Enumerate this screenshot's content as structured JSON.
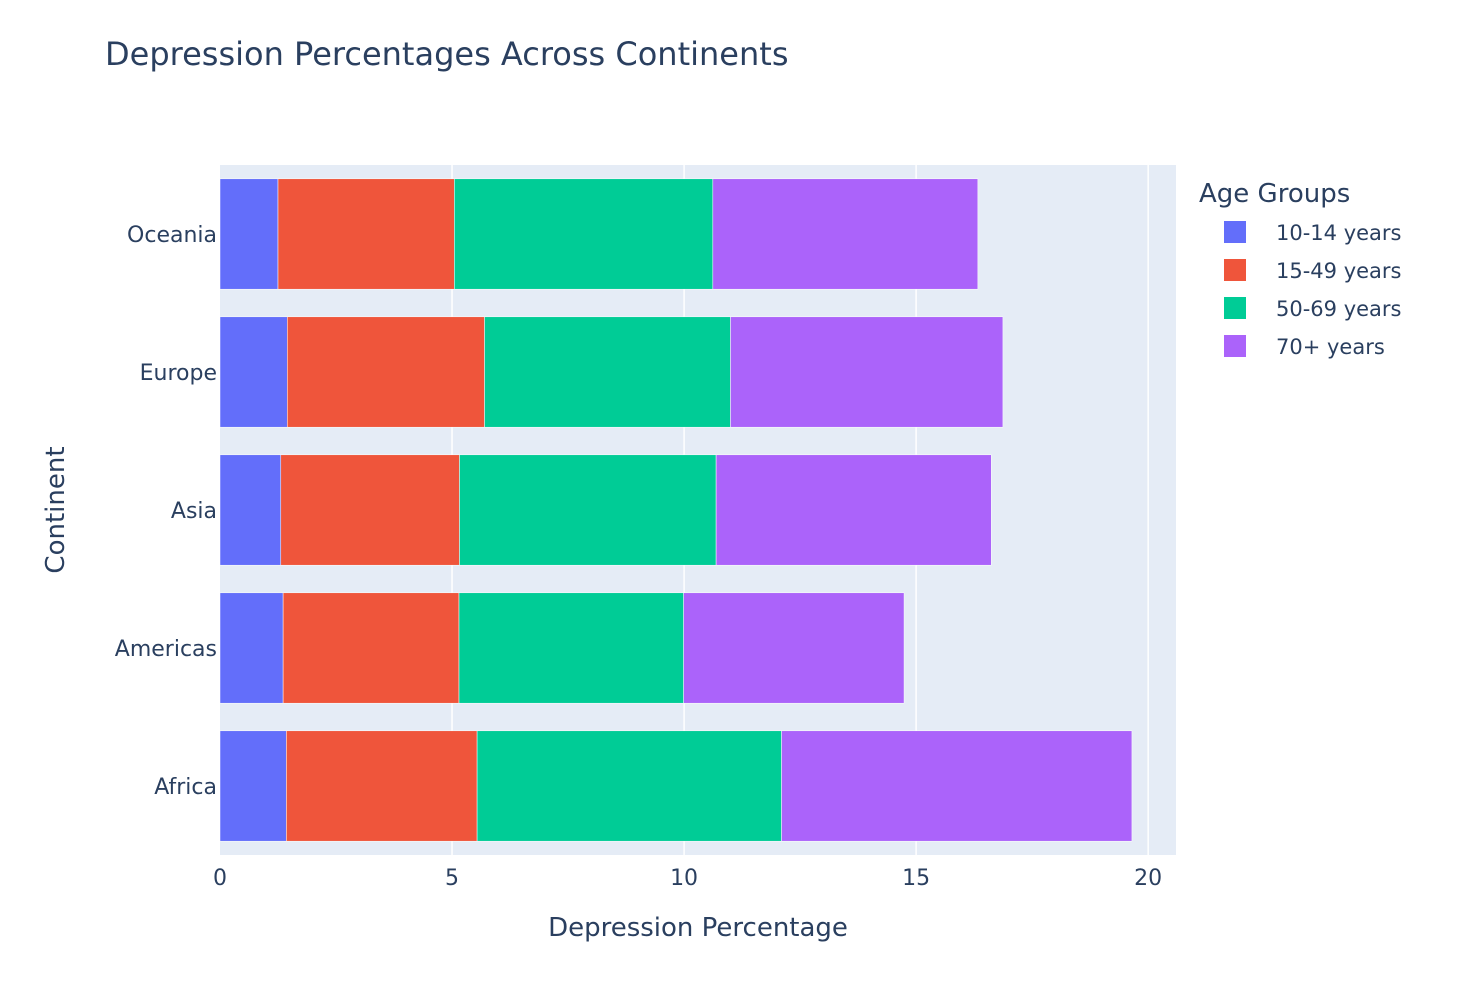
{
  "chart_data": {
    "type": "bar",
    "orientation": "horizontal",
    "barmode": "stack",
    "title": "Depression Percentages Across Continents",
    "xlabel": "Depression Percentage",
    "ylabel": "Continent",
    "xlim": [
      0,
      20.6
    ],
    "xticks": [
      "0",
      "5",
      "10",
      "15",
      "20"
    ],
    "grid": true,
    "categories": [
      "Africa",
      "Americas",
      "Asia",
      "Europe",
      "Oceania"
    ],
    "legend": {
      "title": "Age Groups",
      "placement": "right"
    },
    "series": [
      {
        "name": "10-14 years",
        "color": "#636efa",
        "values": [
          1.43,
          1.36,
          1.31,
          1.45,
          1.25
        ]
      },
      {
        "name": "15-49 years",
        "color": "#ef553b",
        "values": [
          4.11,
          3.79,
          3.85,
          4.25,
          3.8
        ]
      },
      {
        "name": "50-69 years",
        "color": "#00cc96",
        "values": [
          6.56,
          4.84,
          5.53,
          5.3,
          5.57
        ]
      },
      {
        "name": "70+ years",
        "color": "#ab63fa",
        "values": [
          7.55,
          4.75,
          5.93,
          5.87,
          5.71
        ]
      }
    ]
  }
}
